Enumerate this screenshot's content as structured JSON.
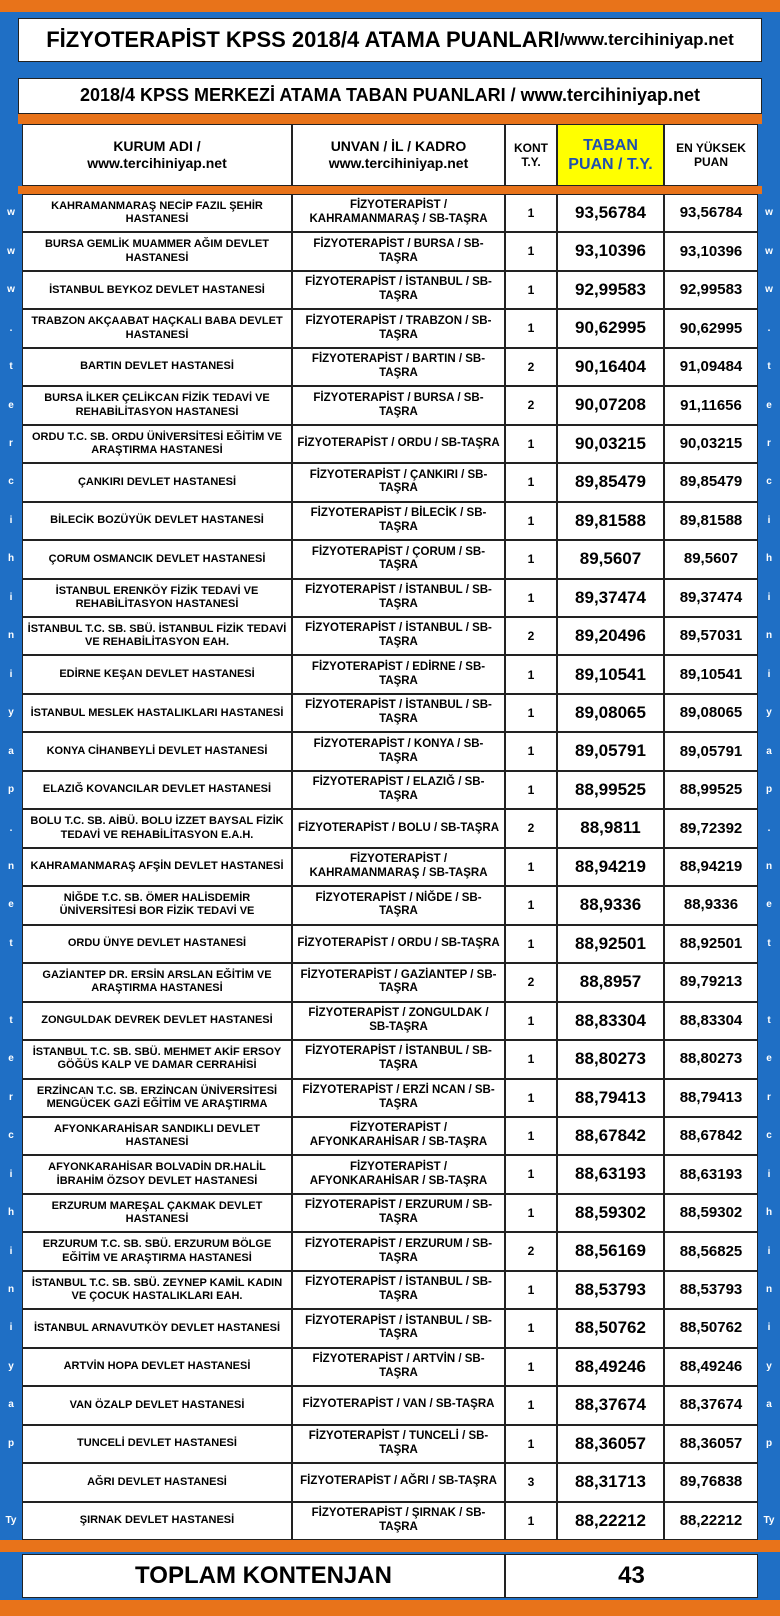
{
  "header": {
    "title": "FİZYOTERAPİST KPSS 2018/4 ATAMA PUANLARI",
    "title_site": "/www.tercihiniyap.net",
    "subtitle": "2018/4 KPSS MERKEZİ ATAMA TABAN PUANLARI / www.tercihiniyap.net"
  },
  "table": {
    "columns": [
      [
        "KURUM ADI /",
        "www.tercihiniyap.net"
      ],
      [
        "UNVAN / İL / KADRO",
        "www.tercihiniyap.net"
      ],
      [
        "KONT",
        "T.Y."
      ],
      [
        "TABAN",
        "PUAN / T.Y."
      ],
      [
        "EN YÜKSEK",
        "PUAN"
      ]
    ],
    "rows": [
      [
        "KAHRAMANMARAŞ NECİP FAZIL ŞEHİR HASTANESİ",
        "FİZYOTERAPİST / KAHRAMANMARAŞ / SB-TAŞRA",
        "1",
        "93,56784",
        "93,56784"
      ],
      [
        "BURSA GEMLİK MUAMMER AĞIM DEVLET HASTANESİ",
        "FİZYOTERAPİST / BURSA / SB-TAŞRA",
        "1",
        "93,10396",
        "93,10396"
      ],
      [
        "İSTANBUL BEYKOZ DEVLET HASTANESİ",
        "FİZYOTERAPİST / İSTANBUL / SB-TAŞRA",
        "1",
        "92,99583",
        "92,99583"
      ],
      [
        "TRABZON AKÇAABAT HAÇKALI BABA DEVLET HASTANESİ",
        "FİZYOTERAPİST / TRABZON / SB-TAŞRA",
        "1",
        "90,62995",
        "90,62995"
      ],
      [
        "BARTIN DEVLET HASTANESİ",
        "FİZYOTERAPİST / BARTIN / SB-TAŞRA",
        "2",
        "90,16404",
        "91,09484"
      ],
      [
        "BURSA İLKER ÇELİKCAN FİZİK TEDAVİ VE REHABİLİTASYON HASTANESİ",
        "FİZYOTERAPİST / BURSA / SB-TAŞRA",
        "2",
        "90,07208",
        "91,11656"
      ],
      [
        "ORDU T.C. SB. ORDU ÜNİVERSİTESİ EĞİTİM VE ARAŞTIRMA HASTANESİ",
        "FİZYOTERAPİST / ORDU / SB-TAŞRA",
        "1",
        "90,03215",
        "90,03215"
      ],
      [
        "ÇANKIRI DEVLET HASTANESİ",
        "FİZYOTERAPİST / ÇANKIRI / SB-TAŞRA",
        "1",
        "89,85479",
        "89,85479"
      ],
      [
        "BİLECİK BOZÜYÜK DEVLET HASTANESİ",
        "FİZYOTERAPİST / BİLECİK / SB-TAŞRA",
        "1",
        "89,81588",
        "89,81588"
      ],
      [
        "ÇORUM OSMANCIK DEVLET HASTANESİ",
        "FİZYOTERAPİST / ÇORUM / SB-TAŞRA",
        "1",
        "89,5607",
        "89,5607"
      ],
      [
        "İSTANBUL ERENKÖY FİZİK TEDAVİ VE REHABİLİTASYON HASTANESİ",
        "FİZYOTERAPİST / İSTANBUL / SB-TAŞRA",
        "1",
        "89,37474",
        "89,37474"
      ],
      [
        "İSTANBUL T.C. SB. SBÜ. İSTANBUL FİZİK TEDAVİ VE REHABİLİTASYON EAH.",
        "FİZYOTERAPİST / İSTANBUL / SB-TAŞRA",
        "2",
        "89,20496",
        "89,57031"
      ],
      [
        "EDİRNE KEŞAN DEVLET HASTANESİ",
        "FİZYOTERAPİST / EDİRNE / SB-TAŞRA",
        "1",
        "89,10541",
        "89,10541"
      ],
      [
        "İSTANBUL MESLEK HASTALIKLARI HASTANESİ",
        "FİZYOTERAPİST / İSTANBUL / SB-TAŞRA",
        "1",
        "89,08065",
        "89,08065"
      ],
      [
        "KONYA CİHANBEYLİ DEVLET HASTANESİ",
        "FİZYOTERAPİST / KONYA / SB-TAŞRA",
        "1",
        "89,05791",
        "89,05791"
      ],
      [
        "ELAZIĞ KOVANCILAR DEVLET HASTANESİ",
        "FİZYOTERAPİST / ELAZIĞ / SB-TAŞRA",
        "1",
        "88,99525",
        "88,99525"
      ],
      [
        "BOLU T.C. SB. AİBÜ. BOLU İZZET BAYSAL FİZİK TEDAVİ VE REHABİLİTASYON E.A.H.",
        "FİZYOTERAPİST / BOLU / SB-TAŞRA",
        "2",
        "88,9811",
        "89,72392"
      ],
      [
        "KAHRAMANMARAŞ AFŞİN DEVLET HASTANESİ",
        "FİZYOTERAPİST / KAHRAMANMARAŞ / SB-TAŞRA",
        "1",
        "88,94219",
        "88,94219"
      ],
      [
        "NİĞDE T.C. SB. ÖMER HALİSDEMİR ÜNİVERSİTESİ BOR FİZİK TEDAVİ VE",
        "FİZYOTERAPİST / NİĞDE / SB-TAŞRA",
        "1",
        "88,9336",
        "88,9336"
      ],
      [
        "ORDU ÜNYE DEVLET HASTANESİ",
        "FİZYOTERAPİST / ORDU / SB-TAŞRA",
        "1",
        "88,92501",
        "88,92501"
      ],
      [
        "GAZİANTEP DR. ERSİN ARSLAN EĞİTİM VE ARAŞTIRMA HASTANESİ",
        "FİZYOTERAPİST / GAZİANTEP / SB-TAŞRA",
        "2",
        "88,8957",
        "89,79213"
      ],
      [
        "ZONGULDAK DEVREK DEVLET HASTANESİ",
        "FİZYOTERAPİST / ZONGULDAK / SB-TAŞRA",
        "1",
        "88,83304",
        "88,83304"
      ],
      [
        "İSTANBUL T.C. SB. SBÜ. MEHMET AKİF ERSOY GÖĞÜS KALP VE DAMAR CERRAHİSİ",
        "FİZYOTERAPİST / İSTANBUL / SB-TAŞRA",
        "1",
        "88,80273",
        "88,80273"
      ],
      [
        "ERZİNCAN T.C. SB. ERZİNCAN ÜNİVERSİTESİ MENGÜCEK GAZİ EĞİTİM VE ARAŞTIRMA",
        "FİZYOTERAPİST / ERZİ NCAN / SB-TAŞRA",
        "1",
        "88,79413",
        "88,79413"
      ],
      [
        "AFYONKARAHİSAR SANDIKLI DEVLET HASTANESİ",
        "FİZYOTERAPİST / AFYONKARAHİSAR / SB-TAŞRA",
        "1",
        "88,67842",
        "88,67842"
      ],
      [
        "AFYONKARAHİSAR BOLVADİN DR.HALİL İBRAHİM ÖZSOY DEVLET HASTANESİ",
        "FİZYOTERAPİST / AFYONKARAHİSAR / SB-TAŞRA",
        "1",
        "88,63193",
        "88,63193"
      ],
      [
        "ERZURUM MAREŞAL ÇAKMAK DEVLET HASTANESİ",
        "FİZYOTERAPİST / ERZURUM / SB-TAŞRA",
        "1",
        "88,59302",
        "88,59302"
      ],
      [
        "ERZURUM T.C. SB. SBÜ. ERZURUM BÖLGE EĞİTİM VE ARAŞTIRMA HASTANESİ",
        "FİZYOTERAPİST / ERZURUM / SB-TAŞRA",
        "2",
        "88,56169",
        "88,56825"
      ],
      [
        "İSTANBUL T.C. SB. SBÜ. ZEYNEP KAMİL KADIN VE ÇOCUK HASTALIKLARI EAH.",
        "FİZYOTERAPİST / İSTANBUL / SB-TAŞRA",
        "1",
        "88,53793",
        "88,53793"
      ],
      [
        "İSTANBUL ARNAVUTKÖY DEVLET HASTANESİ",
        "FİZYOTERAPİST / İSTANBUL / SB-TAŞRA",
        "1",
        "88,50762",
        "88,50762"
      ],
      [
        "ARTVİN HOPA DEVLET HASTANESİ",
        "FİZYOTERAPİST / ARTVİN / SB-TAŞRA",
        "1",
        "88,49246",
        "88,49246"
      ],
      [
        "VAN ÖZALP DEVLET HASTANESİ",
        "FİZYOTERAPİST / VAN / SB-TAŞRA",
        "1",
        "88,37674",
        "88,37674"
      ],
      [
        "TUNCELİ DEVLET HASTANESİ",
        "FİZYOTERAPİST / TUNCELİ / SB-TAŞRA",
        "1",
        "88,36057",
        "88,36057"
      ],
      [
        "AĞRI DEVLET HASTANESİ",
        "FİZYOTERAPİST / AĞRI / SB-TAŞRA",
        "3",
        "88,31713",
        "89,76838"
      ],
      [
        "ŞIRNAK DEVLET HASTANESİ",
        "FİZYOTERAPİST / ŞIRNAK / SB-TAŞRA",
        "1",
        "88,22212",
        "88,22212"
      ]
    ],
    "side_letters": [
      "w",
      "w",
      "w",
      ".",
      "t",
      "e",
      "r",
      "c",
      "i",
      "h",
      "i",
      "n",
      "i",
      "y",
      "a",
      "p",
      ".",
      "n",
      "e",
      "t",
      null,
      "t",
      "e",
      "r",
      "c",
      "i",
      "h",
      "i",
      "n",
      "i",
      "y",
      "a",
      "p",
      null,
      "Ty"
    ]
  },
  "footer": {
    "label": "TOPLAM KONTENJAN",
    "total": "43"
  }
}
